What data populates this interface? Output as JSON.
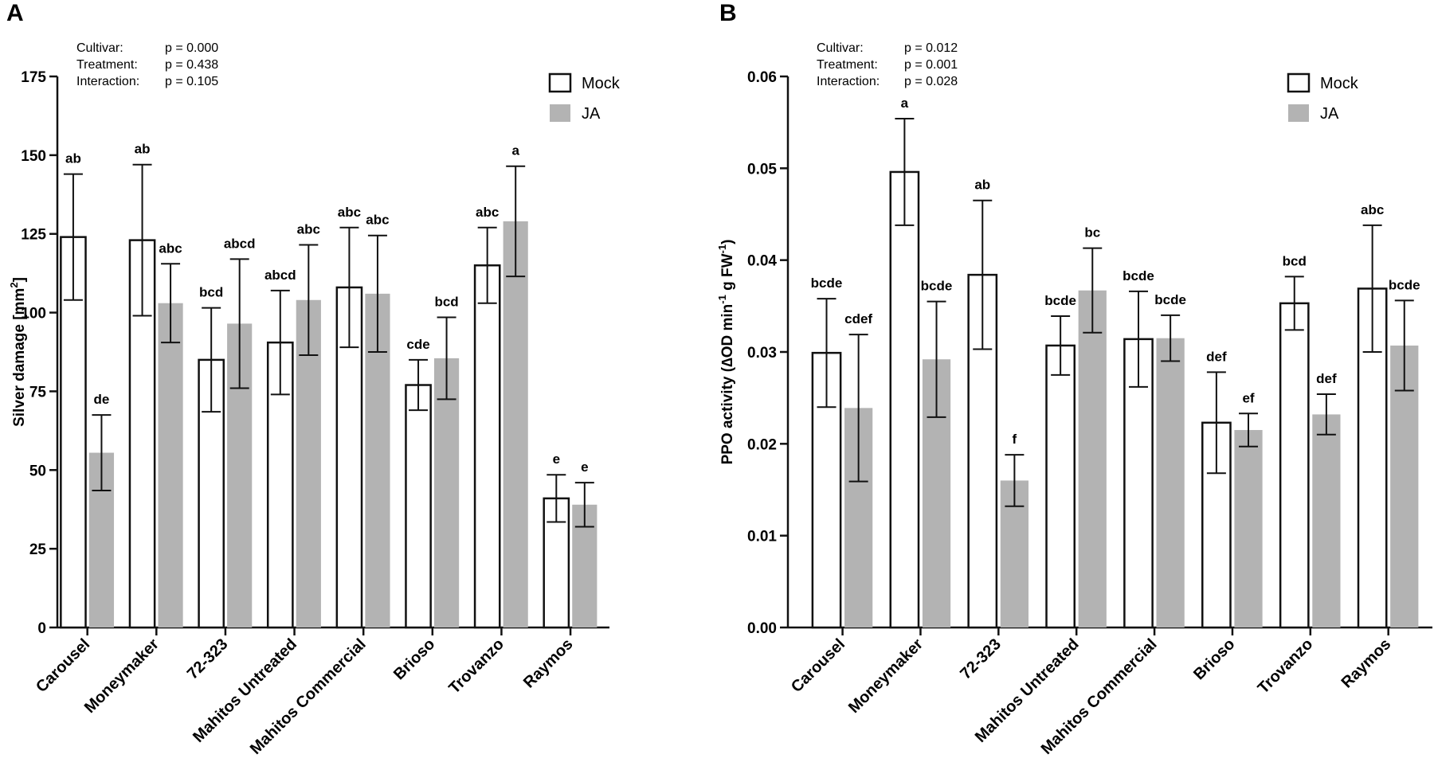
{
  "chart_data": [
    {
      "type": "bar",
      "panel": "A",
      "ylabel_main": "Silver damage [mm",
      "ylabel_sup": "2",
      "ylabel_end": "]",
      "ylim": [
        0,
        175
      ],
      "yticks": [
        0,
        25,
        50,
        75,
        100,
        125,
        150,
        175
      ],
      "ytick_labels": [
        "0",
        "25",
        "50",
        "75",
        "100",
        "125",
        "150",
        "175"
      ],
      "categories": [
        "Carousel",
        "Moneymaker",
        "72-323",
        "Mahitos Untreated",
        "Mahitos Commercial",
        "Brioso",
        "Trovanzo",
        "Raymos"
      ],
      "stats": [
        {
          "label": "Cultivar:",
          "value": "p = 0.000"
        },
        {
          "label": "Treatment:",
          "value": "p = 0.438"
        },
        {
          "label": "Interaction:",
          "value": "p = 0.105"
        }
      ],
      "legend": [
        "Mock",
        "JA"
      ],
      "series": [
        {
          "name": "Mock",
          "color": "#ffffff",
          "values": [
            124,
            123,
            85,
            90.5,
            108,
            77,
            115,
            41
          ],
          "errors": [
            20,
            24,
            16.5,
            16.5,
            19,
            8,
            12,
            7.5
          ],
          "letters": [
            "ab",
            "ab",
            "bcd",
            "abcd",
            "abc",
            "cde",
            "abc",
            "e"
          ]
        },
        {
          "name": "JA",
          "color": "#b3b3b3",
          "values": [
            55.5,
            103,
            96.5,
            104,
            106,
            85.5,
            129,
            39
          ],
          "errors": [
            12,
            12.5,
            20.5,
            17.5,
            18.5,
            13,
            17.5,
            7
          ],
          "letters": [
            "de",
            "abc",
            "abcd",
            "abc",
            "abc",
            "bcd",
            "a",
            "e"
          ]
        }
      ]
    },
    {
      "type": "bar",
      "panel": "B",
      "ylabel_main": "PPO activity (∆OD min",
      "ylabel_sup1": "-1",
      "ylabel_mid": " g FW",
      "ylabel_sup2": "-1",
      "ylabel_end": ")",
      "ylim": [
        0,
        0.06
      ],
      "yticks": [
        0,
        0.01,
        0.02,
        0.03,
        0.04,
        0.05,
        0.06
      ],
      "ytick_labels": [
        "0.00",
        "0.01",
        "0.02",
        "0.03",
        "0.04",
        "0.05",
        "0.06"
      ],
      "categories": [
        "Carousel",
        "Moneymaker",
        "72-323",
        "Mahitos Untreated",
        "Mahitos Commercial",
        "Brioso",
        "Trovanzo",
        "Raymos"
      ],
      "stats": [
        {
          "label": "Cultivar:",
          "value": "p = 0.012"
        },
        {
          "label": "Treatment:",
          "value": "p = 0.001"
        },
        {
          "label": "Interaction:",
          "value": "p = 0.028"
        }
      ],
      "legend": [
        "Mock",
        "JA"
      ],
      "series": [
        {
          "name": "Mock",
          "color": "#ffffff",
          "values": [
            0.0299,
            0.0496,
            0.0384,
            0.0307,
            0.0314,
            0.0223,
            0.0353,
            0.0369
          ],
          "errors": [
            0.0059,
            0.0058,
            0.0081,
            0.0032,
            0.0052,
            0.0055,
            0.0029,
            0.0069
          ],
          "letters": [
            "bcde",
            "a",
            "ab",
            "bcde",
            "bcde",
            "def",
            "bcd",
            "abc"
          ]
        },
        {
          "name": "JA",
          "color": "#b3b3b3",
          "values": [
            0.0239,
            0.0292,
            0.016,
            0.0367,
            0.0315,
            0.0215,
            0.0232,
            0.0307
          ],
          "errors": [
            0.008,
            0.0063,
            0.0028,
            0.0046,
            0.0025,
            0.0018,
            0.0022,
            0.0049
          ],
          "letters": [
            "cdef",
            "bcde",
            "f",
            "bc",
            "bcde",
            "ef",
            "def",
            "bcde"
          ]
        }
      ]
    }
  ]
}
